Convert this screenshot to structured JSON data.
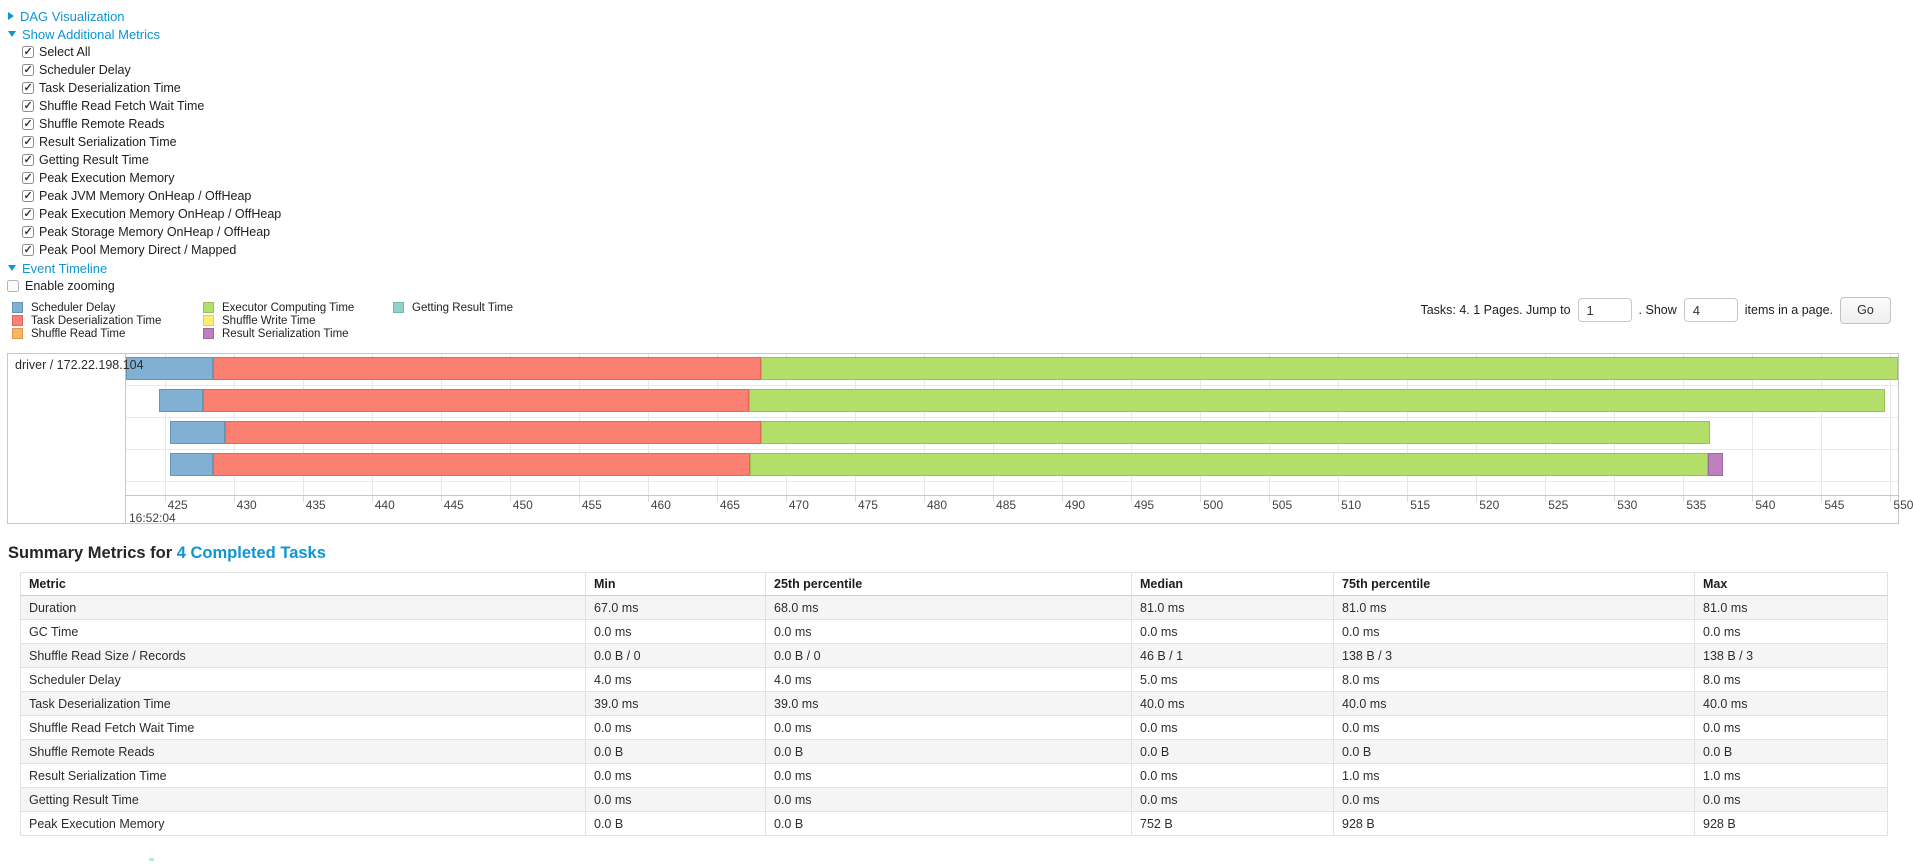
{
  "colors": {
    "link": "#0e95d4",
    "fills": {
      "scheduler_delay": "#80B1D3",
      "task_deserialization": "#FB8072",
      "shuffle_read": "#FDB462",
      "executor_computing": "#B3DE69",
      "shuffle_write": "#FFED6F",
      "result_serialization": "#BC80BD",
      "getting_result": "#8DD3C7"
    },
    "borders": {
      "scheduler_delay": "#6494b6",
      "task_deserialization": "#e06a5e",
      "shuffle_read": "#dd9a50",
      "executor_computing": "#97c353",
      "shuffle_write": "#e2ce55",
      "result_serialization": "#a266a3",
      "getting_result": "#72b8aa"
    }
  },
  "sections": {
    "dag": {
      "label": "DAG Visualization",
      "state": "collapsed"
    },
    "additional_metrics": {
      "label": "Show Additional Metrics",
      "state": "expanded",
      "checkboxes": [
        {
          "label": "Select All",
          "checked": true
        },
        {
          "label": "Scheduler Delay",
          "checked": true
        },
        {
          "label": "Task Deserialization Time",
          "checked": true
        },
        {
          "label": "Shuffle Read Fetch Wait Time",
          "checked": true
        },
        {
          "label": "Shuffle Remote Reads",
          "checked": true
        },
        {
          "label": "Result Serialization Time",
          "checked": true
        },
        {
          "label": "Getting Result Time",
          "checked": true
        },
        {
          "label": "Peak Execution Memory",
          "checked": true
        },
        {
          "label": "Peak JVM Memory OnHeap / OffHeap",
          "checked": true
        },
        {
          "label": "Peak Execution Memory OnHeap / OffHeap",
          "checked": true
        },
        {
          "label": "Peak Storage Memory OnHeap / OffHeap",
          "checked": true
        },
        {
          "label": "Peak Pool Memory Direct / Mapped",
          "checked": true
        }
      ]
    },
    "event_timeline": {
      "label": "Event Timeline",
      "state": "expanded",
      "enable_zooming": {
        "label": "Enable zooming",
        "checked": false
      }
    }
  },
  "legend": {
    "columns": [
      [
        {
          "label": "Scheduler Delay",
          "color_key": "scheduler_delay"
        },
        {
          "label": "Task Deserialization Time",
          "color_key": "task_deserialization"
        },
        {
          "label": "Shuffle Read Time",
          "color_key": "shuffle_read"
        }
      ],
      [
        {
          "label": "Executor Computing Time",
          "color_key": "executor_computing"
        },
        {
          "label": "Shuffle Write Time",
          "color_key": "shuffle_write"
        },
        {
          "label": "Result Serialization Time",
          "color_key": "result_serialization"
        }
      ],
      [
        {
          "label": "Getting Result Time",
          "color_key": "getting_result"
        }
      ]
    ]
  },
  "pagination": {
    "tasks_text": "Tasks: 4. 1 Pages. Jump to",
    "jump_input_value": "1",
    "show_text": ". Show",
    "page_size_value": "4",
    "items_text": "items in a page.",
    "go_label": "Go"
  },
  "chart_data": {
    "type": "timeline",
    "group_label": "driver / 172.22.198.104",
    "x_axis": {
      "unit": "milliseconds within second 16:52:04",
      "major_label": "16:52:04",
      "min": 422.2,
      "max": 550.55,
      "tick_start": 425,
      "tick_step": 5,
      "tick_end": 550
    },
    "tasks": [
      {
        "segments": [
          {
            "key": "scheduler_delay",
            "start": 422.2,
            "end": 428.5
          },
          {
            "key": "task_deserialization",
            "start": 428.5,
            "end": 468.2
          },
          {
            "key": "executor_computing",
            "start": 468.2,
            "end": 550.55
          }
        ]
      },
      {
        "segments": [
          {
            "key": "scheduler_delay",
            "start": 424.6,
            "end": 427.8
          },
          {
            "key": "task_deserialization",
            "start": 427.8,
            "end": 467.3
          },
          {
            "key": "executor_computing",
            "start": 467.3,
            "end": 549.6
          }
        ]
      },
      {
        "segments": [
          {
            "key": "scheduler_delay",
            "start": 425.4,
            "end": 429.4
          },
          {
            "key": "task_deserialization",
            "start": 429.4,
            "end": 468.2
          },
          {
            "key": "executor_computing",
            "start": 468.2,
            "end": 536.9
          }
        ]
      },
      {
        "segments": [
          {
            "key": "scheduler_delay",
            "start": 425.4,
            "end": 428.5
          },
          {
            "key": "task_deserialization",
            "start": 428.5,
            "end": 467.4
          },
          {
            "key": "executor_computing",
            "start": 467.4,
            "end": 536.8
          },
          {
            "key": "result_serialization",
            "start": 536.8,
            "end": 537.9
          }
        ]
      }
    ]
  },
  "summary": {
    "heading_prefix": "Summary Metrics for ",
    "heading_link": "4 Completed Tasks",
    "table": {
      "columns": [
        "Metric",
        "Min",
        "25th percentile",
        "Median",
        "75th percentile",
        "Max"
      ],
      "rows": [
        [
          "Duration",
          "67.0 ms",
          "68.0 ms",
          "81.0 ms",
          "81.0 ms",
          "81.0 ms"
        ],
        [
          "GC Time",
          "0.0 ms",
          "0.0 ms",
          "0.0 ms",
          "0.0 ms",
          "0.0 ms"
        ],
        [
          "Shuffle Read Size / Records",
          "0.0 B / 0",
          "0.0 B / 0",
          "46 B / 1",
          "138 B / 3",
          "138 B / 3"
        ],
        [
          "Scheduler Delay",
          "4.0 ms",
          "4.0 ms",
          "5.0 ms",
          "8.0 ms",
          "8.0 ms"
        ],
        [
          "Task Deserialization Time",
          "39.0 ms",
          "39.0 ms",
          "40.0 ms",
          "40.0 ms",
          "40.0 ms"
        ],
        [
          "Shuffle Read Fetch Wait Time",
          "0.0 ms",
          "0.0 ms",
          "0.0 ms",
          "0.0 ms",
          "0.0 ms"
        ],
        [
          "Shuffle Remote Reads",
          "0.0 B",
          "0.0 B",
          "0.0 B",
          "0.0 B",
          "0.0 B"
        ],
        [
          "Result Serialization Time",
          "0.0 ms",
          "0.0 ms",
          "0.0 ms",
          "1.0 ms",
          "1.0 ms"
        ],
        [
          "Getting Result Time",
          "0.0 ms",
          "0.0 ms",
          "0.0 ms",
          "0.0 ms",
          "0.0 ms"
        ],
        [
          "Peak Execution Memory",
          "0.0 B",
          "0.0 B",
          "752 B",
          "928 B",
          "928 B"
        ]
      ]
    }
  }
}
